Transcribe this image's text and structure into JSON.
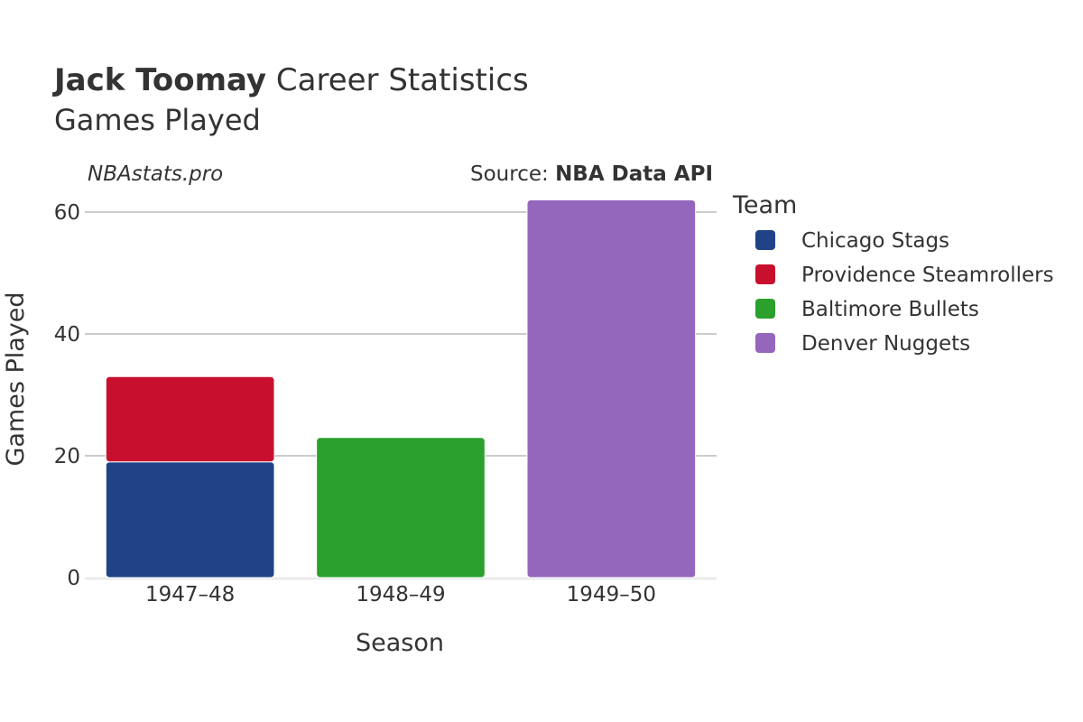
{
  "header": {
    "player": "Jack Toomay",
    "title_rest": " Career Statistics",
    "subtitle": "Games Played"
  },
  "credits": {
    "site": "NBAstats.pro",
    "source_prefix": "Source: ",
    "source_name": "NBA Data API"
  },
  "chart_data": {
    "type": "bar",
    "stacked": true,
    "title": "Jack Toomay Career Statistics",
    "subtitle": "Games Played",
    "xlabel": "Season",
    "ylabel": "Games Played",
    "categories": [
      "1947–48",
      "1948–49",
      "1949–50"
    ],
    "ylim": [
      0,
      65
    ],
    "yticks": [
      0,
      20,
      40,
      60
    ],
    "grid": true,
    "legend_title": "Team",
    "legend_position": "right",
    "series": [
      {
        "name": "Chicago Stags",
        "color": "#1f4386",
        "values": [
          19,
          0,
          0
        ]
      },
      {
        "name": "Providence Steamrollers",
        "color": "#c8102e",
        "values": [
          14,
          0,
          0
        ]
      },
      {
        "name": "Baltimore Bullets",
        "color": "#2ca02c",
        "values": [
          0,
          23,
          0
        ]
      },
      {
        "name": "Denver Nuggets",
        "color": "#9467bd",
        "values": [
          0,
          0,
          62
        ]
      }
    ]
  }
}
